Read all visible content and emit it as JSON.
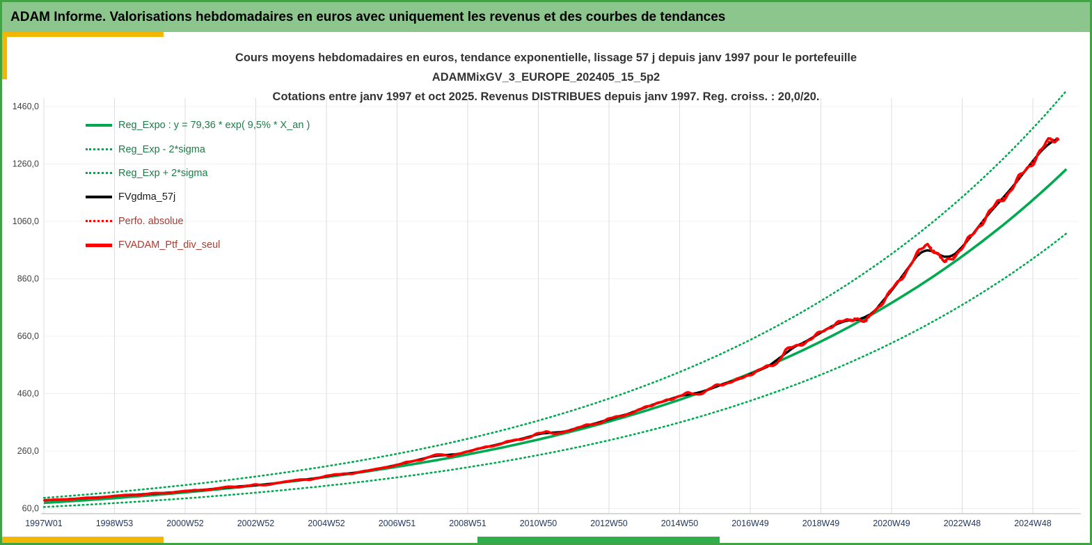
{
  "header": {
    "title": "ADAM Informe. Valorisations hebdomadaires en euros avec uniquement les revenus et des courbes de tendances"
  },
  "chart": {
    "titles": [
      "Cours moyens hebdomadaires  en euros, tendance exponentielle, lissage 57 j depuis janv 1997 pour le portefeuille",
      "ADAMMixGV_3_EUROPE_202405_15_5p2",
      "Cotations entre janv 1997 et oct 2025. Revenus DISTRIBUES depuis janv 1997. Reg. croiss. : 20,0/20."
    ],
    "legend": [
      {
        "label": "Reg_Expo : y = 79,36 * exp( 9,5% *  X_an )",
        "style": "solid",
        "color": "#00A94F",
        "text_color": "#1E7A46",
        "weight": 4
      },
      {
        "label": "Reg_Exp - 2*sigma",
        "style": "dotted",
        "color": "#00A94F",
        "text_color": "#1E7A46",
        "weight": 3
      },
      {
        "label": "Reg_Exp + 2*sigma",
        "style": "dotted",
        "color": "#00A94F",
        "text_color": "#1E7A46",
        "weight": 3
      },
      {
        "label": "FVgdma_57j",
        "style": "solid",
        "color": "#000000",
        "text_color": "#1A1A1A",
        "weight": 4
      },
      {
        "label": "Perfo. absolue",
        "style": "dotted",
        "color": "#FF0000",
        "text_color": "#A93A32",
        "weight": 3
      },
      {
        "label": "FVADAM_Ptf_div_seul",
        "style": "solid",
        "color": "#FF0000",
        "text_color": "#B03A2E",
        "weight": 5
      }
    ]
  },
  "chart_data": {
    "type": "line",
    "title": "Cours moyens hebdomadaires en euros, tendance exponentielle, lissage 57 j depuis janv 1997",
    "x_axis_unit": "semaine (annee W numero)",
    "y_axis_unit": "euros",
    "x_ticks": [
      {
        "label": "1997W01",
        "t": 0
      },
      {
        "label": "1998W53",
        "t": 2
      },
      {
        "label": "2000W52",
        "t": 4
      },
      {
        "label": "2002W52",
        "t": 6
      },
      {
        "label": "2004W52",
        "t": 8
      },
      {
        "label": "2006W51",
        "t": 10
      },
      {
        "label": "2008W51",
        "t": 12
      },
      {
        "label": "2010W50",
        "t": 14
      },
      {
        "label": "2012W50",
        "t": 16
      },
      {
        "label": "2014W50",
        "t": 18
      },
      {
        "label": "2016W49",
        "t": 20
      },
      {
        "label": "2018W49",
        "t": 22
      },
      {
        "label": "2020W49",
        "t": 24
      },
      {
        "label": "2022W48",
        "t": 26
      },
      {
        "label": "2024W48",
        "t": 28
      }
    ],
    "y_ticks": [
      {
        "label": "60,0",
        "v": 60
      },
      {
        "label": "260,0",
        "v": 260
      },
      {
        "label": "460,0",
        "v": 460
      },
      {
        "label": "660,0",
        "v": 660
      },
      {
        "label": "860,0",
        "v": 860
      },
      {
        "label": "1060,0",
        "v": 1060
      },
      {
        "label": "1260,0",
        "v": 1260
      },
      {
        "label": "1460,0",
        "v": 1460
      }
    ],
    "regression": {
      "label": "Reg_Expo",
      "formula_text": "y = 79,36 * exp( 9,5% * X_an )",
      "a": 79.36,
      "rate": 0.095,
      "sigma_factor": 1.22,
      "t_min": 0,
      "t_max": 28.95
    },
    "axis_range": {
      "t": [
        0,
        29.3
      ],
      "v_labels": [
        60,
        1460
      ]
    },
    "series": [
      {
        "name": "FVADAM_Ptf_div_seul",
        "color": "#FF0000",
        "style": "solid",
        "points": [
          [
            0,
            88
          ],
          [
            0.25,
            90
          ],
          [
            0.5,
            92
          ],
          [
            0.75,
            91
          ],
          [
            1,
            95
          ],
          [
            1.25,
            98
          ],
          [
            1.5,
            97
          ],
          [
            1.75,
            100
          ],
          [
            2,
            104
          ],
          [
            2.25,
            106
          ],
          [
            2.5,
            108
          ],
          [
            2.75,
            107
          ],
          [
            3,
            112
          ],
          [
            3.25,
            114
          ],
          [
            3.5,
            113
          ],
          [
            3.75,
            117
          ],
          [
            4,
            121
          ],
          [
            4.25,
            124
          ],
          [
            4.5,
            123
          ],
          [
            4.75,
            127
          ],
          [
            5,
            132
          ],
          [
            5.25,
            136
          ],
          [
            5.5,
            134
          ],
          [
            5.75,
            139
          ],
          [
            6,
            143
          ],
          [
            6.25,
            141
          ],
          [
            6.5,
            146
          ],
          [
            6.75,
            151
          ],
          [
            7,
            157
          ],
          [
            7.25,
            161
          ],
          [
            7.5,
            159
          ],
          [
            7.75,
            166
          ],
          [
            8,
            173
          ],
          [
            8.25,
            178
          ],
          [
            8.5,
            182
          ],
          [
            8.75,
            180
          ],
          [
            9,
            189
          ],
          [
            9.25,
            194
          ],
          [
            9.5,
            199
          ],
          [
            9.75,
            204
          ],
          [
            10,
            212
          ],
          [
            10.25,
            220
          ],
          [
            10.5,
            226
          ],
          [
            10.75,
            232
          ],
          [
            11,
            243
          ],
          [
            11.25,
            250
          ],
          [
            11.5,
            242
          ],
          [
            11.75,
            249
          ],
          [
            12,
            259
          ],
          [
            12.25,
            267
          ],
          [
            12.5,
            273
          ],
          [
            12.75,
            279
          ],
          [
            13,
            288
          ],
          [
            13.25,
            296
          ],
          [
            13.5,
            302
          ],
          [
            13.75,
            307
          ],
          [
            14,
            321
          ],
          [
            14.25,
            330
          ],
          [
            14.5,
            318
          ],
          [
            14.75,
            326
          ],
          [
            15,
            338
          ],
          [
            15.25,
            346
          ],
          [
            15.5,
            352
          ],
          [
            15.75,
            359
          ],
          [
            16,
            372
          ],
          [
            16.25,
            380
          ],
          [
            16.5,
            388
          ],
          [
            16.75,
            395
          ],
          [
            17,
            414
          ],
          [
            17.25,
            422
          ],
          [
            17.5,
            430
          ],
          [
            17.75,
            441
          ],
          [
            18,
            453
          ],
          [
            18.25,
            461
          ],
          [
            18.5,
            457
          ],
          [
            18.75,
            469
          ],
          [
            19,
            486
          ],
          [
            19.25,
            494
          ],
          [
            19.5,
            503
          ],
          [
            19.75,
            512
          ],
          [
            20,
            528
          ],
          [
            20.25,
            542
          ],
          [
            20.5,
            554
          ],
          [
            20.75,
            566
          ],
          [
            21,
            610
          ],
          [
            21.25,
            624
          ],
          [
            21.5,
            636
          ],
          [
            21.75,
            650
          ],
          [
            22,
            676
          ],
          [
            22.25,
            692
          ],
          [
            22.5,
            706
          ],
          [
            22.75,
            716
          ],
          [
            23,
            724
          ],
          [
            23.25,
            706
          ],
          [
            23.5,
            748
          ],
          [
            23.75,
            778
          ],
          [
            24,
            820
          ],
          [
            24.25,
            858
          ],
          [
            24.5,
            902
          ],
          [
            24.75,
            948
          ],
          [
            25,
            985
          ],
          [
            25.25,
            952
          ],
          [
            25.5,
            915
          ],
          [
            25.75,
            938
          ],
          [
            26,
            968
          ],
          [
            26.25,
            1006
          ],
          [
            26.5,
            1048
          ],
          [
            26.75,
            1088
          ],
          [
            27,
            1122
          ],
          [
            27.25,
            1152
          ],
          [
            27.5,
            1190
          ],
          [
            27.75,
            1232
          ],
          [
            28,
            1270
          ],
          [
            28.25,
            1308
          ],
          [
            28.5,
            1344
          ],
          [
            28.75,
            1352
          ]
        ]
      },
      {
        "name": "FVgdma_57j",
        "color": "#000000",
        "style": "solid",
        "derived": "moving_average_57j_of_FVADAM_Ptf_div_seul"
      },
      {
        "name": "Perfo. absolue",
        "color": "#FF0000",
        "style": "dotted",
        "same_as": "FVADAM_Ptf_div_seul"
      }
    ]
  }
}
